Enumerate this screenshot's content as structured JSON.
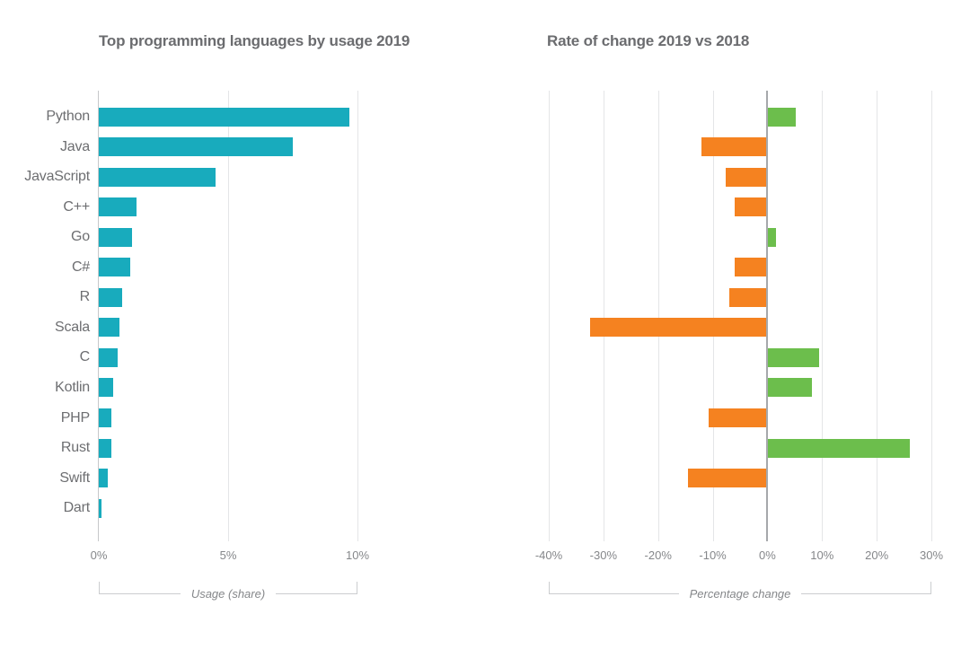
{
  "page": {
    "background": "#ffffff"
  },
  "chart_data": [
    {
      "type": "bar",
      "orientation": "horizontal",
      "title": "Top programming languages by usage 2019",
      "xlabel": "Usage (share)",
      "unit": "%",
      "categories": [
        "Python",
        "Java",
        "JavaScript",
        "C++",
        "Go",
        "C#",
        "R",
        "Scala",
        "C",
        "Kotlin",
        "PHP",
        "Rust",
        "Swift",
        "Dart"
      ],
      "values": [
        9.7,
        7.5,
        4.5,
        1.45,
        1.3,
        1.2,
        0.9,
        0.8,
        0.72,
        0.55,
        0.47,
        0.47,
        0.35,
        0.1
      ],
      "xlim": [
        0,
        10
      ],
      "ticks": [
        {
          "value": 0,
          "label": "0%"
        },
        {
          "value": 5,
          "label": "5%"
        },
        {
          "value": 10,
          "label": "10%"
        }
      ],
      "bar_color": "#18abbd",
      "grid": "vertical",
      "legend": "none",
      "show_category_labels": true
    },
    {
      "type": "bar",
      "orientation": "horizontal",
      "title": "Rate of change 2019 vs 2018",
      "xlabel": "Percentage change",
      "unit": "%",
      "categories": [
        "Python",
        "Java",
        "JavaScript",
        "C++",
        "Go",
        "C#",
        "R",
        "Scala",
        "C",
        "Kotlin",
        "PHP",
        "Rust",
        "Swift",
        "Dart"
      ],
      "values": [
        5.2,
        -12.1,
        -7.7,
        -6,
        1.5,
        -6,
        -7,
        -32.5,
        9.5,
        8.2,
        -10.7,
        26,
        -14.6,
        0
      ],
      "xlim": [
        -40,
        30
      ],
      "ticks": [
        {
          "value": -40,
          "label": "-40%"
        },
        {
          "value": -30,
          "label": "-30%"
        },
        {
          "value": -20,
          "label": "-20%"
        },
        {
          "value": -10,
          "label": "-10%"
        },
        {
          "value": 0,
          "label": "0%"
        },
        {
          "value": 10,
          "label": "10%"
        },
        {
          "value": 20,
          "label": "20%"
        },
        {
          "value": 30,
          "label": "30%"
        }
      ],
      "positive_color": "#6cbe4c",
      "negative_color": "#f58220",
      "grid": "vertical",
      "legend": "none",
      "show_category_labels": false
    }
  ]
}
